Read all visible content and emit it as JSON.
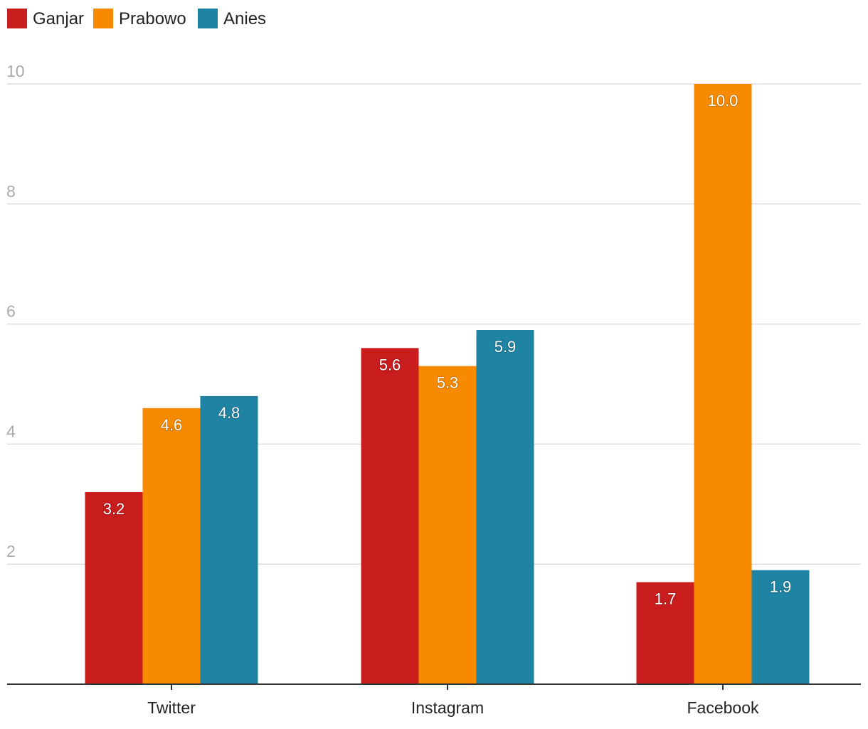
{
  "chart_data": {
    "type": "bar",
    "categories": [
      "Twitter",
      "Instagram",
      "Facebook"
    ],
    "series": [
      {
        "name": "Ganjar",
        "color": "#c91d1d",
        "values": [
          3.2,
          5.6,
          1.7
        ],
        "labels": [
          "3.2",
          "5.6",
          "1.7"
        ]
      },
      {
        "name": "Prabowo",
        "color": "#f88a00",
        "values": [
          4.6,
          5.3,
          10.0
        ],
        "labels": [
          "4.6",
          "5.3",
          "10.0"
        ]
      },
      {
        "name": "Anies",
        "color": "#1f83a3",
        "values": [
          4.8,
          5.9,
          1.9
        ],
        "labels": [
          "4.8",
          "5.9",
          "1.9"
        ]
      }
    ],
    "yticks": [
      "2",
      "4",
      "6",
      "8",
      "10"
    ],
    "ylim": [
      0,
      10
    ],
    "grid": true,
    "legend": "top-left",
    "title": "",
    "xlabel": "",
    "ylabel": ""
  }
}
